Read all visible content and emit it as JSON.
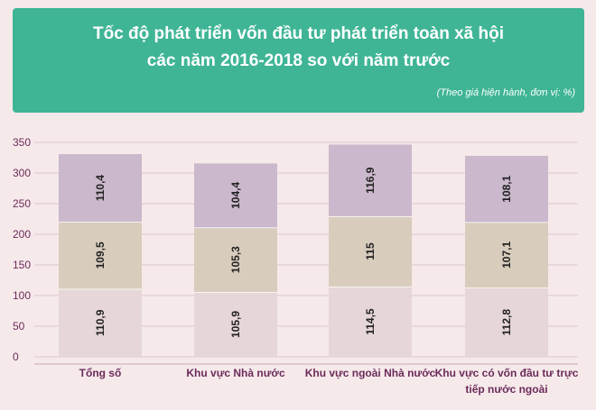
{
  "header": {
    "title": "Tốc độ phát triển vốn đầu tư phát triển toàn xã hội\ncác năm 2016-2018 so với năm trước",
    "note": "(Theo giá hiện hành, đơn vị: %)"
  },
  "colors": {
    "header_bg": "#3fb596",
    "background": "#f6e9ea",
    "segment_bottom": "#e6d6d8",
    "segment_middle": "#d8cdbd",
    "segment_top": "#cbb8cc",
    "axis_text": "#6b2b5a"
  },
  "chart_data": {
    "type": "bar",
    "stacked": true,
    "categories": [
      "Tổng số",
      "Khu vực Nhà nước",
      "Khu vực ngoài Nhà nước",
      "Khu vực có vốn đầu tư trực\ntiếp nước ngoài"
    ],
    "series": [
      {
        "values": [
          110.9,
          105.9,
          114.5,
          112.8
        ],
        "labels": [
          "110,9",
          "105,9",
          "114,5",
          "112,8"
        ]
      },
      {
        "values": [
          109.5,
          105.3,
          115,
          107.1
        ],
        "labels": [
          "109,5",
          "105,3",
          "115",
          "107,1"
        ]
      },
      {
        "values": [
          110.4,
          104.4,
          116.9,
          108.1
        ],
        "labels": [
          "110,4",
          "104,4",
          "116,9",
          "108,1"
        ]
      }
    ],
    "y_ticks": [
      0,
      50,
      100,
      150,
      200,
      250,
      300,
      350
    ],
    "ylim": [
      0,
      350
    ],
    "grid": true
  }
}
